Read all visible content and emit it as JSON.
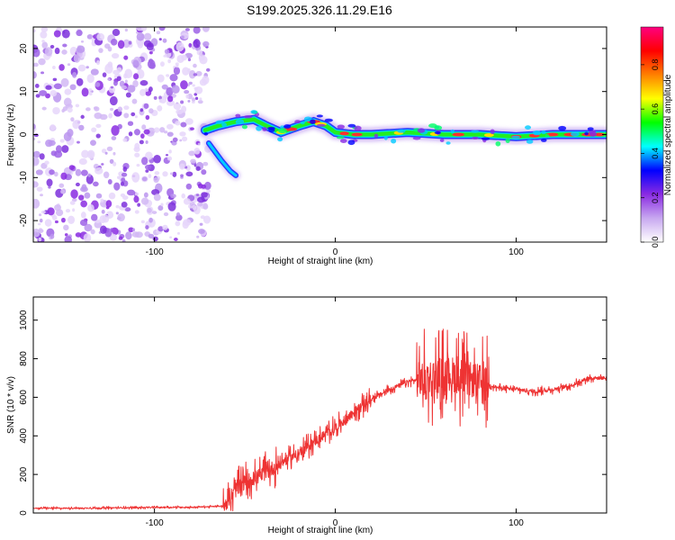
{
  "title": "S199.2025.326.11.29.E16",
  "chart_data": [
    {
      "type": "heatmap",
      "name": "spectrogram",
      "xlabel": "Height of straight line (km)",
      "ylabel": "Frequency (Hz)",
      "xlim": [
        -167,
        150
      ],
      "ylim": [
        -25,
        25
      ],
      "xticks": [
        -100,
        0,
        100
      ],
      "yticks": [
        -20,
        -10,
        0,
        10,
        20
      ],
      "noise_region_x": [
        -167,
        -70
      ],
      "signal_ridge": {
        "x": [
          -72,
          -65,
          -55,
          -45,
          -38,
          -30,
          -20,
          -12,
          -5,
          0,
          10,
          20,
          40,
          60,
          80,
          100,
          120,
          150
        ],
        "freq_hz": [
          1.0,
          2.0,
          3.0,
          3.5,
          2.0,
          0.5,
          2.0,
          3.0,
          2.0,
          0.5,
          0.0,
          0.0,
          0.5,
          0.0,
          0.0,
          -0.5,
          0.0,
          0.0
        ]
      },
      "secondary_branch": {
        "x": [
          -70,
          -63,
          -58,
          -55
        ],
        "freq_hz": [
          -2.0,
          -6.0,
          -8.5,
          -9.5
        ]
      }
    },
    {
      "type": "line",
      "name": "snr",
      "xlabel": "Height of straight line (km)",
      "ylabel": "SNR (10 * v/v)",
      "xlim": [
        -167,
        150
      ],
      "ylim": [
        0,
        1120
      ],
      "xticks": [
        -100,
        0,
        100
      ],
      "yticks": [
        0,
        200,
        400,
        600,
        800,
        1000
      ],
      "series": [
        {
          "name": "SNR",
          "color": "#ee3333",
          "x": [
            -167,
            -140,
            -110,
            -80,
            -62,
            -55,
            -50,
            -40,
            -30,
            -20,
            -10,
            0,
            10,
            20,
            30,
            40,
            45,
            50,
            55,
            60,
            65,
            70,
            75,
            80,
            90,
            100,
            110,
            120,
            130,
            140,
            150
          ],
          "values": [
            25,
            25,
            28,
            30,
            35,
            120,
            160,
            200,
            260,
            310,
            380,
            440,
            520,
            590,
            640,
            680,
            690,
            700,
            710,
            720,
            720,
            700,
            690,
            680,
            650,
            640,
            630,
            640,
            660,
            700,
            700
          ]
        }
      ]
    }
  ],
  "colorbar": {
    "label": "Normalized spectral amplitude",
    "ticks": [
      "0.0",
      "0.2",
      "0.4",
      "0.6",
      "0.8"
    ],
    "tick_values": [
      0.0,
      0.2,
      0.4,
      0.6,
      0.8
    ],
    "range": [
      0,
      0.97
    ],
    "stops": [
      "#ffffff",
      "#c8a8f0",
      "#8a2be2",
      "#0000ff",
      "#00ffff",
      "#00ff00",
      "#ffff00",
      "#ff8000",
      "#ff0000",
      "#ff0080"
    ]
  }
}
